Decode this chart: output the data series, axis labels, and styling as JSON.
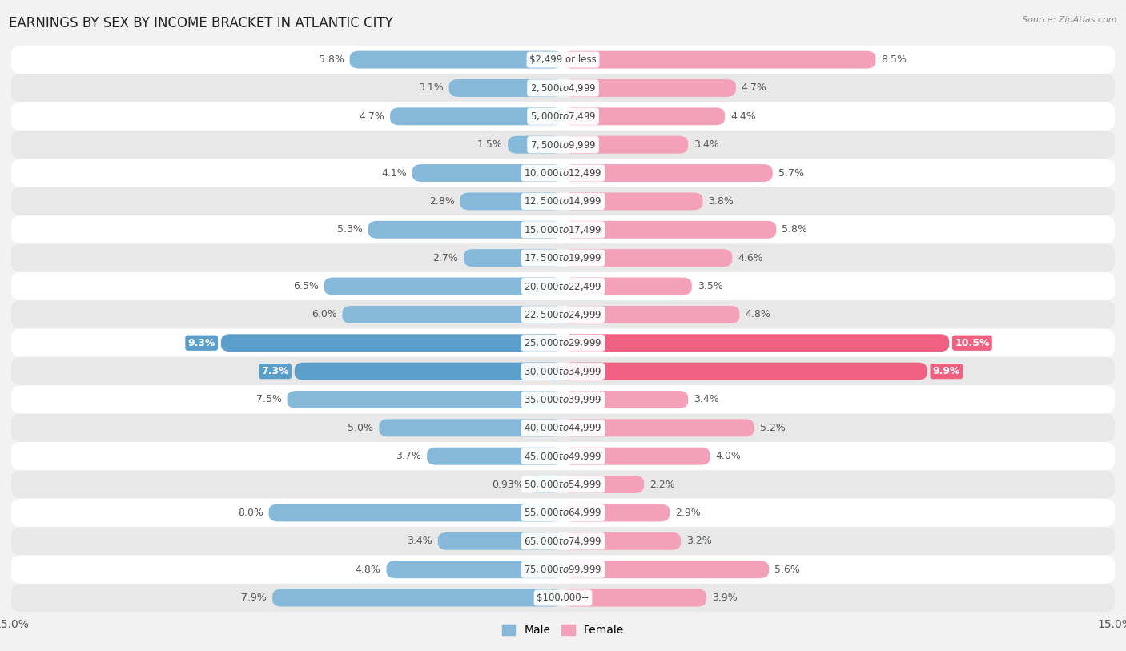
{
  "title": "EARNINGS BY SEX BY INCOME BRACKET IN ATLANTIC CITY",
  "source": "Source: ZipAtlas.com",
  "categories": [
    "$2,499 or less",
    "$2,500 to $4,999",
    "$5,000 to $7,499",
    "$7,500 to $9,999",
    "$10,000 to $12,499",
    "$12,500 to $14,999",
    "$15,000 to $17,499",
    "$17,500 to $19,999",
    "$20,000 to $22,499",
    "$22,500 to $24,999",
    "$25,000 to $29,999",
    "$30,000 to $34,999",
    "$35,000 to $39,999",
    "$40,000 to $44,999",
    "$45,000 to $49,999",
    "$50,000 to $54,999",
    "$55,000 to $64,999",
    "$65,000 to $74,999",
    "$75,000 to $99,999",
    "$100,000+"
  ],
  "male_values": [
    5.8,
    3.1,
    4.7,
    1.5,
    4.1,
    2.8,
    5.3,
    2.7,
    6.5,
    6.0,
    9.3,
    7.3,
    7.5,
    5.0,
    3.7,
    0.93,
    8.0,
    3.4,
    4.8,
    7.9
  ],
  "female_values": [
    8.5,
    4.7,
    4.4,
    3.4,
    5.7,
    3.8,
    5.8,
    4.6,
    3.5,
    4.8,
    10.5,
    9.9,
    3.4,
    5.2,
    4.0,
    2.2,
    2.9,
    3.2,
    5.6,
    3.9
  ],
  "male_color": "#85b8d9",
  "female_color": "#f4a0b8",
  "male_highlight_color": "#5b9ec9",
  "female_highlight_color": "#f06080",
  "highlight_rows": [
    10,
    11
  ],
  "xlim": 15.0,
  "background_color": "#f2f2f2",
  "row_bg_even": "#ffffff",
  "row_bg_odd": "#e8e8e8",
  "title_fontsize": 12,
  "label_fontsize": 8.5,
  "value_fontsize": 9
}
